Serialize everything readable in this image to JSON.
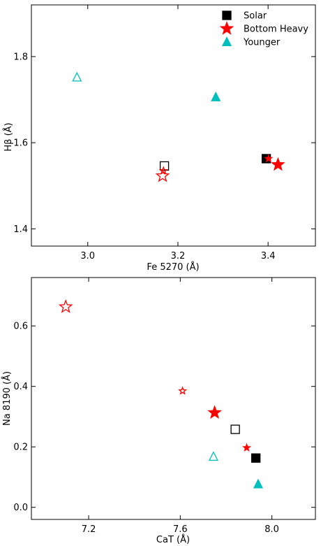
{
  "colors": {
    "solar": "#000000",
    "bottom_heavy": "#ff0000",
    "younger": "#00bfbf"
  },
  "legend": {
    "placement": "top-right",
    "entries": [
      {
        "label": "Solar",
        "marker": "square",
        "color": "#000000"
      },
      {
        "label": "Bottom Heavy",
        "marker": "star",
        "color": "#ff0000"
      },
      {
        "label": "Younger",
        "marker": "triangle",
        "color": "#00bfbf"
      }
    ]
  },
  "chart_data": [
    {
      "type": "scatter",
      "xlabel": "Fe 5270 (Å)",
      "ylabel": "Hβ (Å)",
      "xlim": [
        2.875,
        3.505
      ],
      "ylim": [
        1.36,
        1.92
      ],
      "xticks": [
        "3.0",
        "3.2",
        "3.4"
      ],
      "yticks": [
        "1.4",
        "1.6",
        "1.8"
      ],
      "xtick_values": [
        3.0,
        3.2,
        3.4
      ],
      "ytick_values": [
        1.4,
        1.6,
        1.8
      ],
      "grid": false,
      "points": [
        {
          "series": "Solar",
          "marker": "square",
          "filled": true,
          "size": "large",
          "x": 3.396,
          "y": 1.563
        },
        {
          "series": "Solar",
          "marker": "square",
          "filled": false,
          "size": "large",
          "x": 3.17,
          "y": 1.546
        },
        {
          "series": "Bottom Heavy",
          "marker": "star",
          "filled": true,
          "size": "large",
          "x": 3.422,
          "y": 1.549
        },
        {
          "series": "Bottom Heavy",
          "marker": "star",
          "filled": true,
          "size": "small",
          "x": 3.401,
          "y": 1.563
        },
        {
          "series": "Bottom Heavy",
          "marker": "star",
          "filled": false,
          "size": "large",
          "x": 3.166,
          "y": 1.523
        },
        {
          "series": "Bottom Heavy",
          "marker": "star",
          "filled": false,
          "size": "small",
          "x": 3.168,
          "y": 1.535
        },
        {
          "series": "Younger",
          "marker": "triangle",
          "filled": true,
          "size": "large",
          "x": 3.284,
          "y": 1.706
        },
        {
          "series": "Younger",
          "marker": "triangle",
          "filled": false,
          "size": "large",
          "x": 2.976,
          "y": 1.752
        }
      ]
    },
    {
      "type": "scatter",
      "xlabel": "CaT (Å)",
      "ylabel": "Na 8190 (Å)",
      "xlim": [
        6.95,
        8.19
      ],
      "ylim": [
        -0.04,
        0.76
      ],
      "xticks": [
        "7.2",
        "7.6",
        "8.0"
      ],
      "yticks": [
        "0.0",
        "0.2",
        "0.4",
        "0.6"
      ],
      "xtick_values": [
        7.2,
        7.6,
        8.0
      ],
      "ytick_values": [
        0.0,
        0.2,
        0.4,
        0.6
      ],
      "grid": false,
      "points": [
        {
          "series": "Solar",
          "marker": "square",
          "filled": true,
          "size": "large",
          "x": 7.93,
          "y": 0.163
        },
        {
          "series": "Solar",
          "marker": "square",
          "filled": false,
          "size": "large",
          "x": 7.84,
          "y": 0.258
        },
        {
          "series": "Bottom Heavy",
          "marker": "star",
          "filled": true,
          "size": "large",
          "x": 7.75,
          "y": 0.313
        },
        {
          "series": "Bottom Heavy",
          "marker": "star",
          "filled": true,
          "size": "small",
          "x": 7.89,
          "y": 0.197
        },
        {
          "series": "Bottom Heavy",
          "marker": "star",
          "filled": false,
          "size": "large",
          "x": 7.1,
          "y": 0.663
        },
        {
          "series": "Bottom Heavy",
          "marker": "star",
          "filled": false,
          "size": "small",
          "x": 7.61,
          "y": 0.385
        },
        {
          "series": "Younger",
          "marker": "triangle",
          "filled": true,
          "size": "large",
          "x": 7.94,
          "y": 0.077
        },
        {
          "series": "Younger",
          "marker": "triangle",
          "filled": false,
          "size": "large",
          "x": 7.745,
          "y": 0.168
        }
      ]
    }
  ]
}
